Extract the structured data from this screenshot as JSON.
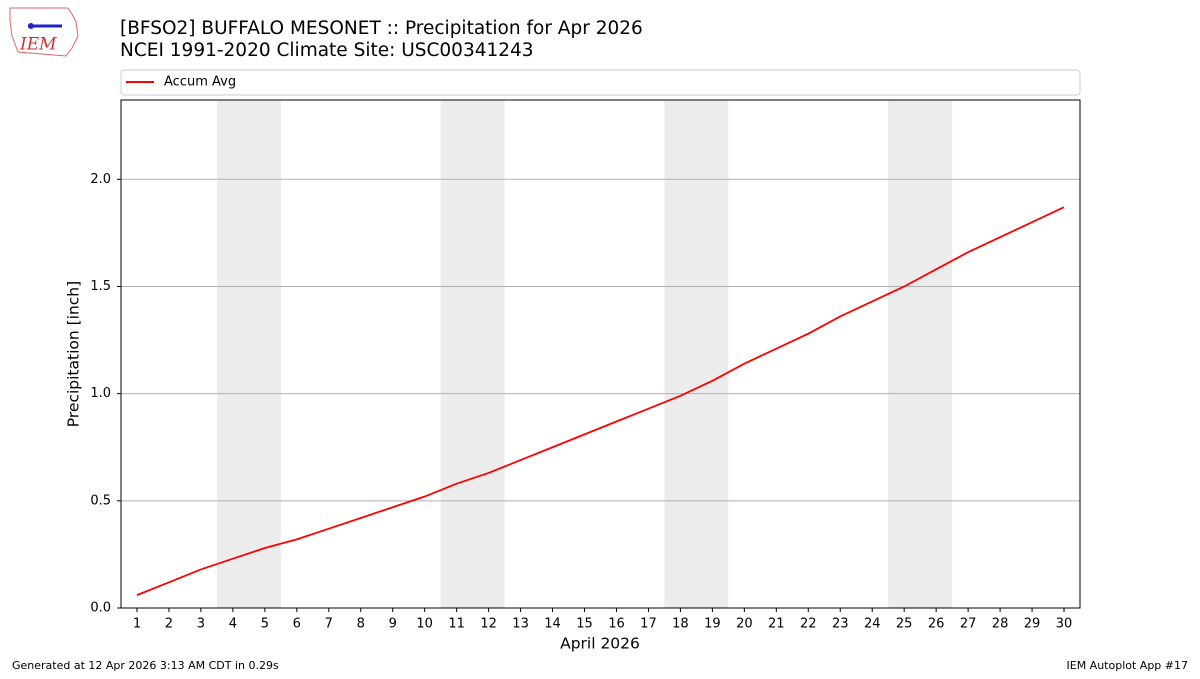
{
  "chart_data": {
    "type": "line",
    "title": "[BFSO2] BUFFALO MESONET :: Precipitation for Apr 2026",
    "subtitle": "NCEI 1991-2020 Climate Site: USC00341243",
    "x_label": "April 2026",
    "y_label": "Precipitation [inch]",
    "x": [
      1,
      2,
      3,
      4,
      5,
      6,
      7,
      8,
      9,
      10,
      11,
      12,
      13,
      14,
      15,
      16,
      17,
      18,
      19,
      20,
      21,
      22,
      23,
      24,
      25,
      26,
      27,
      28,
      29,
      30
    ],
    "series": [
      {
        "name": "Accum Avg",
        "color": "#ff0000",
        "values": [
          0.06,
          0.12,
          0.18,
          0.23,
          0.28,
          0.32,
          0.37,
          0.42,
          0.47,
          0.52,
          0.58,
          0.63,
          0.69,
          0.75,
          0.81,
          0.87,
          0.93,
          0.99,
          1.06,
          1.14,
          1.21,
          1.28,
          1.36,
          1.43,
          1.5,
          1.58,
          1.66,
          1.73,
          1.8,
          1.87
        ]
      }
    ],
    "xlim": [
      0.5,
      30.5
    ],
    "ylim": [
      0,
      2.37
    ],
    "xticks": [
      1,
      2,
      3,
      4,
      5,
      6,
      7,
      8,
      9,
      10,
      11,
      12,
      13,
      14,
      15,
      16,
      17,
      18,
      19,
      20,
      21,
      22,
      23,
      24,
      25,
      26,
      27,
      28,
      29,
      30
    ],
    "yticks": [
      {
        "value": 0,
        "label": "0.0"
      },
      0.5,
      {
        "value": 1,
        "label": "1.0"
      },
      1.5,
      {
        "value": 2,
        "label": "2.0"
      }
    ],
    "grid": true,
    "shaded_spans": [
      [
        3.5,
        5.5
      ],
      [
        10.5,
        12.5
      ],
      [
        17.5,
        19.5
      ],
      [
        24.5,
        26.5
      ]
    ],
    "shade_color": "#ececec",
    "legend": "top"
  },
  "logo": "IEM",
  "footer": {
    "left": "Generated at 12 Apr 2026 3:13 AM CDT in 0.29s",
    "right": "IEM Autoplot App #17"
  }
}
